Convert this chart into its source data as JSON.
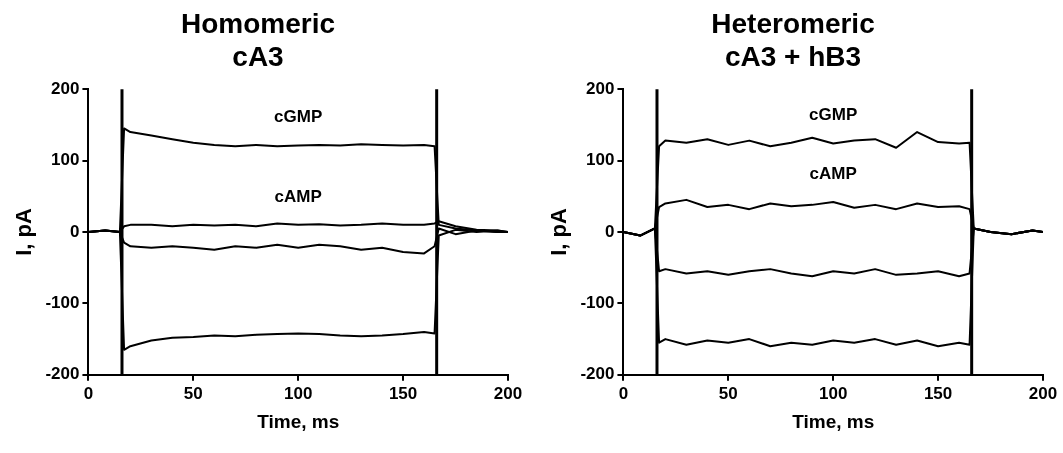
{
  "chart_data": [
    {
      "type": "line",
      "title": "Homomeric",
      "subtitle": "cA3",
      "xlabel": "Time, ms",
      "ylabel": "I, pA",
      "xlim": [
        0,
        200
      ],
      "xticks": [
        0,
        50,
        100,
        150,
        200
      ],
      "ylim": [
        -200,
        200
      ],
      "yticks": [
        -200,
        -100,
        0,
        100,
        200
      ],
      "grid": false,
      "legend": false,
      "marker": "none",
      "line_style": "solid",
      "ref_lines": [
        {
          "axis": "x",
          "value": 16,
          "color": "#000000"
        },
        {
          "axis": "x",
          "value": 166,
          "color": "#000000"
        }
      ],
      "series": [
        {
          "name": "cGMP",
          "color": "#000000",
          "x": [
            0,
            8,
            15,
            17,
            20,
            30,
            40,
            50,
            60,
            70,
            80,
            90,
            100,
            110,
            120,
            130,
            140,
            150,
            160,
            165,
            167,
            175,
            185,
            195,
            200
          ],
          "values": [
            0,
            2,
            0,
            145,
            140,
            135,
            130,
            125,
            122,
            120,
            122,
            120,
            121,
            122,
            121,
            123,
            122,
            121,
            122,
            120,
            10,
            5,
            2,
            0,
            0
          ]
        },
        {
          "name": "cAMP",
          "color": "#000000",
          "x": [
            0,
            8,
            15,
            17,
            20,
            30,
            40,
            50,
            60,
            70,
            80,
            90,
            100,
            110,
            120,
            130,
            140,
            150,
            160,
            165,
            167,
            175,
            185,
            195,
            200
          ],
          "values": [
            0,
            2,
            0,
            8,
            10,
            10,
            8,
            10,
            9,
            10,
            8,
            12,
            10,
            11,
            9,
            10,
            12,
            10,
            10,
            12,
            15,
            8,
            3,
            2,
            0
          ]
        },
        {
          "color": "#000000",
          "x": [
            0,
            8,
            15,
            17,
            20,
            30,
            40,
            50,
            60,
            70,
            80,
            90,
            100,
            110,
            120,
            130,
            140,
            150,
            160,
            165,
            167,
            175,
            185,
            195,
            200
          ],
          "values": [
            0,
            2,
            0,
            -15,
            -20,
            -22,
            -20,
            -22,
            -25,
            -20,
            -22,
            -18,
            -22,
            -18,
            -20,
            -25,
            -22,
            -28,
            -30,
            -20,
            5,
            -3,
            2,
            0,
            0
          ]
        },
        {
          "color": "#000000",
          "x": [
            0,
            8,
            15,
            17,
            20,
            30,
            40,
            50,
            60,
            70,
            80,
            90,
            100,
            110,
            120,
            130,
            140,
            150,
            160,
            165,
            167,
            175,
            185,
            195,
            200
          ],
          "values": [
            0,
            2,
            0,
            -165,
            -160,
            -152,
            -148,
            -147,
            -145,
            -146,
            -144,
            -143,
            -142,
            -143,
            -145,
            -146,
            -145,
            -143,
            -140,
            -142,
            -5,
            3,
            0,
            2,
            0
          ]
        }
      ]
    },
    {
      "type": "line",
      "title": "Heteromeric",
      "subtitle": "cA3 + hB3",
      "xlabel": "Time, ms",
      "ylabel": "I, pA",
      "xlim": [
        0,
        200
      ],
      "xticks": [
        0,
        50,
        100,
        150,
        200
      ],
      "ylim": [
        -200,
        200
      ],
      "yticks": [
        -200,
        -100,
        0,
        100,
        200
      ],
      "grid": false,
      "legend": false,
      "marker": "none",
      "line_style": "solid",
      "ref_lines": [
        {
          "axis": "x",
          "value": 16,
          "color": "#000000"
        },
        {
          "axis": "x",
          "value": 166,
          "color": "#000000"
        }
      ],
      "series": [
        {
          "name": "cGMP",
          "color": "#000000",
          "x": [
            0,
            8,
            15,
            17,
            20,
            30,
            40,
            50,
            60,
            70,
            80,
            90,
            100,
            110,
            120,
            130,
            140,
            150,
            160,
            165,
            167,
            175,
            185,
            195,
            200
          ],
          "values": [
            0,
            -5,
            5,
            120,
            128,
            125,
            130,
            122,
            128,
            120,
            125,
            132,
            124,
            128,
            130,
            118,
            140,
            126,
            124,
            125,
            5,
            0,
            -3,
            2,
            0
          ]
        },
        {
          "name": "cAMP",
          "color": "#000000",
          "x": [
            0,
            8,
            15,
            17,
            20,
            30,
            40,
            50,
            60,
            70,
            80,
            90,
            100,
            110,
            120,
            130,
            140,
            150,
            160,
            165,
            167,
            175,
            185,
            195,
            200
          ],
          "values": [
            0,
            -5,
            5,
            35,
            40,
            45,
            35,
            38,
            32,
            40,
            36,
            38,
            42,
            34,
            38,
            32,
            40,
            35,
            36,
            32,
            5,
            0,
            -3,
            2,
            0
          ]
        },
        {
          "color": "#000000",
          "x": [
            0,
            8,
            15,
            17,
            20,
            30,
            40,
            50,
            60,
            70,
            80,
            90,
            100,
            110,
            120,
            130,
            140,
            150,
            160,
            165,
            167,
            175,
            185,
            195,
            200
          ],
          "values": [
            0,
            -5,
            5,
            -55,
            -52,
            -58,
            -55,
            -60,
            -55,
            -52,
            -58,
            -62,
            -55,
            -58,
            -52,
            -60,
            -58,
            -55,
            -62,
            -58,
            5,
            0,
            -3,
            2,
            0
          ]
        },
        {
          "color": "#000000",
          "x": [
            0,
            8,
            15,
            17,
            20,
            30,
            40,
            50,
            60,
            70,
            80,
            90,
            100,
            110,
            120,
            130,
            140,
            150,
            160,
            165,
            167,
            175,
            185,
            195,
            200
          ],
          "values": [
            0,
            -5,
            5,
            -155,
            -150,
            -158,
            -152,
            -155,
            -150,
            -160,
            -155,
            -158,
            -152,
            -155,
            -150,
            -158,
            -152,
            -160,
            -155,
            -158,
            5,
            0,
            -3,
            2,
            0
          ]
        }
      ]
    }
  ]
}
